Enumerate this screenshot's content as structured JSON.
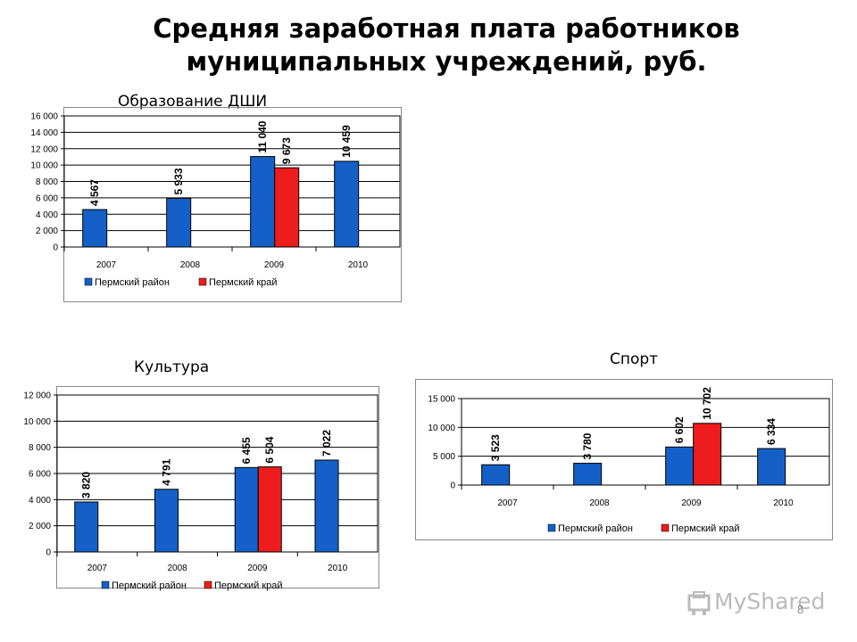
{
  "title_line1": "Средняя заработная плата работников",
  "title_line2": "муниципальных учреждений, руб.",
  "page_number": "8",
  "logo_text": "MyShared",
  "colors": {
    "series1": "#1460c8",
    "series2": "#ee1c1c"
  },
  "chart_data": [
    {
      "type": "bar",
      "title": "Образование ДШИ",
      "categories": [
        "2007",
        "2008",
        "2009",
        "2010"
      ],
      "ylim": [
        0,
        16000
      ],
      "yticks": [
        "0",
        "2 000",
        "4 000",
        "6 000",
        "8 000",
        "10 000",
        "12 000",
        "14 000",
        "16 000"
      ],
      "series": [
        {
          "name": "Пермский район",
          "values": [
            4567,
            5933,
            11040,
            10459
          ],
          "labels": [
            "4 567",
            "5 933",
            "11 040",
            "10 459"
          ]
        },
        {
          "name": "Пермский край",
          "values": [
            null,
            null,
            9673,
            null
          ],
          "labels": [
            "",
            "",
            "9 673",
            ""
          ]
        }
      ],
      "legend": "bottom",
      "grid": true
    },
    {
      "type": "bar",
      "title": "Культура",
      "categories": [
        "2007",
        "2008",
        "2009",
        "2010"
      ],
      "ylim": [
        0,
        12000
      ],
      "yticks": [
        "0",
        "2 000",
        "4 000",
        "6 000",
        "8 000",
        "10 000",
        "12 000"
      ],
      "series": [
        {
          "name": "Пермский район",
          "values": [
            3820,
            4791,
            6455,
            7022
          ],
          "labels": [
            "3 820",
            "4 791",
            "6 455",
            "7 022"
          ]
        },
        {
          "name": "Пермский край",
          "values": [
            null,
            null,
            6504,
            null
          ],
          "labels": [
            "",
            "",
            "6 504",
            ""
          ]
        }
      ],
      "legend": "bottom",
      "grid": true
    },
    {
      "type": "bar",
      "title": "Спорт",
      "categories": [
        "2007",
        "2008",
        "2009",
        "2010"
      ],
      "ylim": [
        0,
        15000
      ],
      "yticks": [
        "0",
        "5 000",
        "10 000",
        "15 000"
      ],
      "series": [
        {
          "name": "Пермский район",
          "values": [
            3523,
            3780,
            6602,
            6334
          ],
          "labels": [
            "3 523",
            "3 780",
            "6 602",
            "6 334"
          ]
        },
        {
          "name": "Пермский край",
          "values": [
            null,
            null,
            10702,
            null
          ],
          "labels": [
            "",
            "",
            "10 702",
            ""
          ]
        }
      ],
      "legend": "bottom",
      "grid": true
    }
  ]
}
